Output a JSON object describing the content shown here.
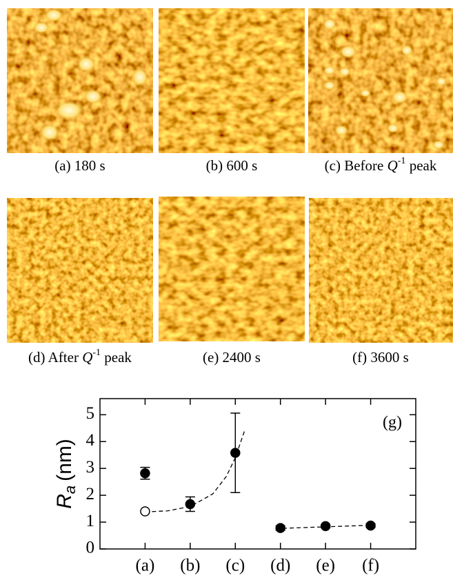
{
  "images": [
    {
      "caption": "(a) 180 s"
    },
    {
      "caption": "(b) 600 s"
    },
    {
      "caption": {
        "prefix": "(c) Before ",
        "symbol": "Q",
        "superscript": "-1",
        "suffix": " peak"
      }
    },
    {
      "caption": {
        "prefix": "(d) After ",
        "symbol": "Q",
        "superscript": "-1",
        "suffix": " peak"
      }
    },
    {
      "caption": "(e) 2400 s"
    },
    {
      "caption": "(f) 3600 s"
    }
  ],
  "chart_data": {
    "type": "scatter",
    "panel_label": "(g)",
    "y_label": {
      "symbol": "R",
      "subscript": "a",
      "unit": "(nm)"
    },
    "xlim": [
      0,
      7
    ],
    "xticks": [
      {
        "value": 1,
        "label": "(a)"
      },
      {
        "value": 2,
        "label": "(b)"
      },
      {
        "value": 3,
        "label": "(c)"
      },
      {
        "value": 4,
        "label": "(d)"
      },
      {
        "value": 5,
        "label": "(e)"
      },
      {
        "value": 6,
        "label": "(f)"
      }
    ],
    "ylim": [
      0,
      5.6
    ],
    "yticks": [
      0,
      1,
      2,
      3,
      4,
      5
    ],
    "series": [
      {
        "marker": "filled",
        "color": "#000000",
        "x": [
          1,
          2,
          3,
          4,
          5,
          6
        ],
        "values": [
          2.82,
          1.67,
          3.58,
          0.78,
          0.85,
          0.87
        ],
        "errors": [
          0.22,
          0.27,
          1.48,
          0.08,
          0.05,
          0.07
        ]
      },
      {
        "marker": "open",
        "color": "#000000",
        "x": [
          1
        ],
        "values": [
          1.4
        ]
      }
    ],
    "fits": [
      {
        "x": [
          1,
          1.5,
          2,
          2.5,
          2.8,
          3,
          3.2
        ],
        "values": [
          1.38,
          1.42,
          1.58,
          2.05,
          2.7,
          3.4,
          4.38
        ]
      },
      {
        "x": [
          3.9,
          6.1
        ],
        "values": [
          0.76,
          0.89
        ]
      }
    ]
  }
}
